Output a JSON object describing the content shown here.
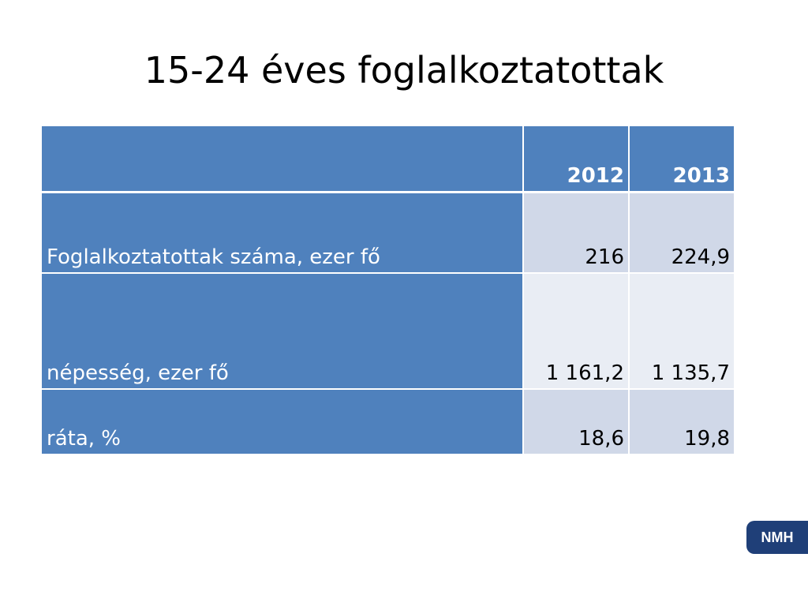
{
  "title": "15-24 éves foglalkoztatottak",
  "table": {
    "columns": [
      "2012",
      "2013"
    ],
    "rows": [
      {
        "label": "Foglalkoztatottak száma, ezer fő",
        "cells": [
          "216",
          "224,9"
        ]
      },
      {
        "label": "népesség, ezer fő",
        "cells": [
          "1 161,2",
          "1 135,7"
        ]
      },
      {
        "label": "ráta, %",
        "cells": [
          "18,6",
          "19,8"
        ]
      }
    ]
  },
  "logo": "NMH"
}
